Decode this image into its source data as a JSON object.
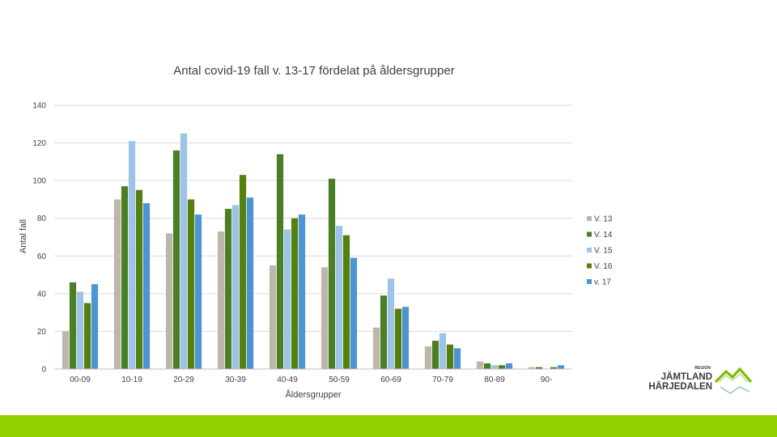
{
  "chart_data": {
    "type": "bar",
    "title": "Antal covid-19 fall v. 13-17 fördelat på åldersgrupper",
    "xlabel": "Åldersgrupper",
    "ylabel": "Antal fall",
    "ylim": [
      0,
      140
    ],
    "yticks": [
      0,
      20,
      40,
      60,
      80,
      100,
      120,
      140
    ],
    "grid": true,
    "legend_position": "right",
    "categories": [
      "00-09",
      "10-19",
      "20-29",
      "30-39",
      "40-49",
      "50-59",
      "60-69",
      "70-79",
      "80-89",
      "90-"
    ],
    "series": [
      {
        "name": "V. 13",
        "color": "#bdb7aa",
        "values": [
          20,
          90,
          72,
          73,
          55,
          54,
          22,
          12,
          4,
          1
        ]
      },
      {
        "name": "V. 14",
        "color": "#4a7f26",
        "values": [
          46,
          97,
          116,
          85,
          114,
          101,
          39,
          15,
          3,
          1
        ]
      },
      {
        "name": "V. 15",
        "color": "#9dc3e6",
        "values": [
          41,
          121,
          125,
          87,
          74,
          76,
          48,
          19,
          2,
          0
        ]
      },
      {
        "name": "V. 16",
        "color": "#548010",
        "values": [
          35,
          95,
          90,
          103,
          80,
          71,
          32,
          13,
          2,
          1
        ]
      },
      {
        "name": "v. 17",
        "color": "#4d94d4",
        "values": [
          45,
          88,
          82,
          91,
          82,
          59,
          33,
          11,
          3,
          2
        ]
      }
    ]
  },
  "logo": {
    "region": "REGION",
    "line1": "JÄMTLAND",
    "line2": "HÄRJEDALEN"
  },
  "colors": {
    "bottom_bar": "#92d000",
    "grid": "#d9d9d9",
    "axis": "#bfbfbf"
  }
}
